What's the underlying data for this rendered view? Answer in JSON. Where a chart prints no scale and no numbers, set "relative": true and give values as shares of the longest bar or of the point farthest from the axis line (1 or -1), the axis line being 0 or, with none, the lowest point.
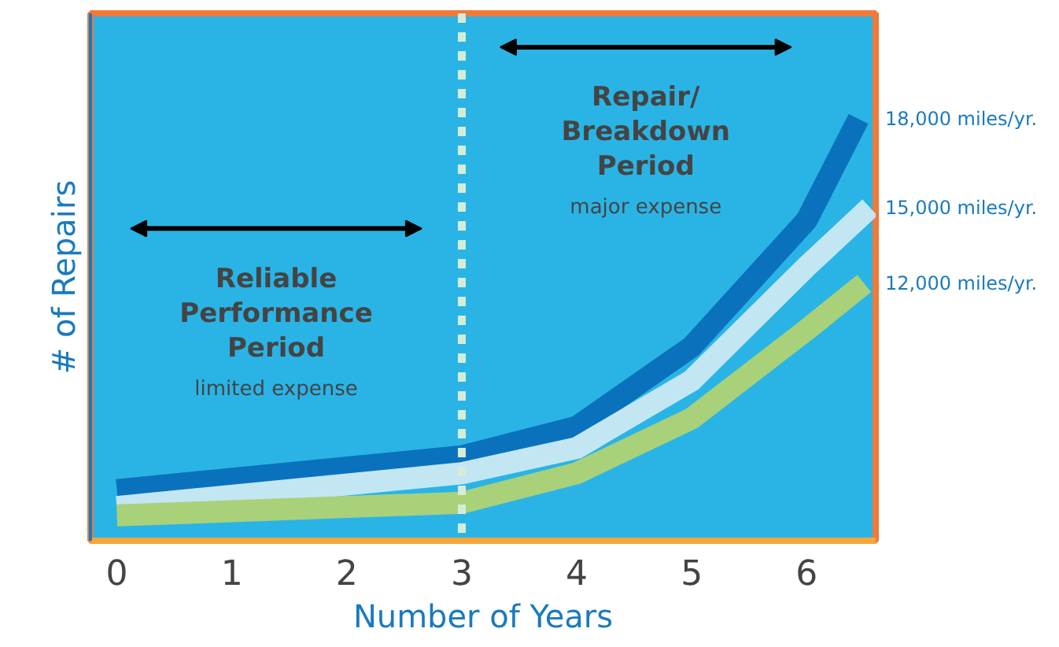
{
  "chart_data": {
    "type": "line",
    "relative": true,
    "xlabel": "Number of Years",
    "ylabel": "# of Repairs",
    "xlim": [
      -0.23,
      6.6
    ],
    "xticks": [
      0,
      1,
      2,
      3,
      4,
      5,
      6
    ],
    "series": [
      {
        "name": "18,000 miles/yr.",
        "color": "#0a72bc",
        "x": [
          0,
          3,
          4,
          5,
          6,
          6.45
        ],
        "values": [
          0.12,
          0.2,
          0.27,
          0.46,
          0.76,
          1
        ]
      },
      {
        "name": "15,000 miles/yr.",
        "color": "#c3e6f3",
        "x": [
          0,
          3,
          4,
          5,
          6,
          6.55
        ],
        "values": [
          0.08,
          0.16,
          0.22,
          0.38,
          0.65,
          0.79
        ]
      },
      {
        "name": "12,000 miles/yr.",
        "color": "#a9d17a",
        "x": [
          0,
          3,
          4,
          5,
          6,
          6.5
        ],
        "values": [
          0.06,
          0.09,
          0.16,
          0.29,
          0.5,
          0.61
        ]
      }
    ],
    "ref_lines": [
      {
        "axis": "x",
        "value": 3,
        "color": "#d5ecd9",
        "line_style": "dashed"
      }
    ],
    "annotations": [
      "Reliable Performance Period",
      "limited expense",
      "Repair/ Breakdown Period",
      "major expense"
    ],
    "grid": false,
    "marker": "none",
    "line_style": "solid"
  }
}
